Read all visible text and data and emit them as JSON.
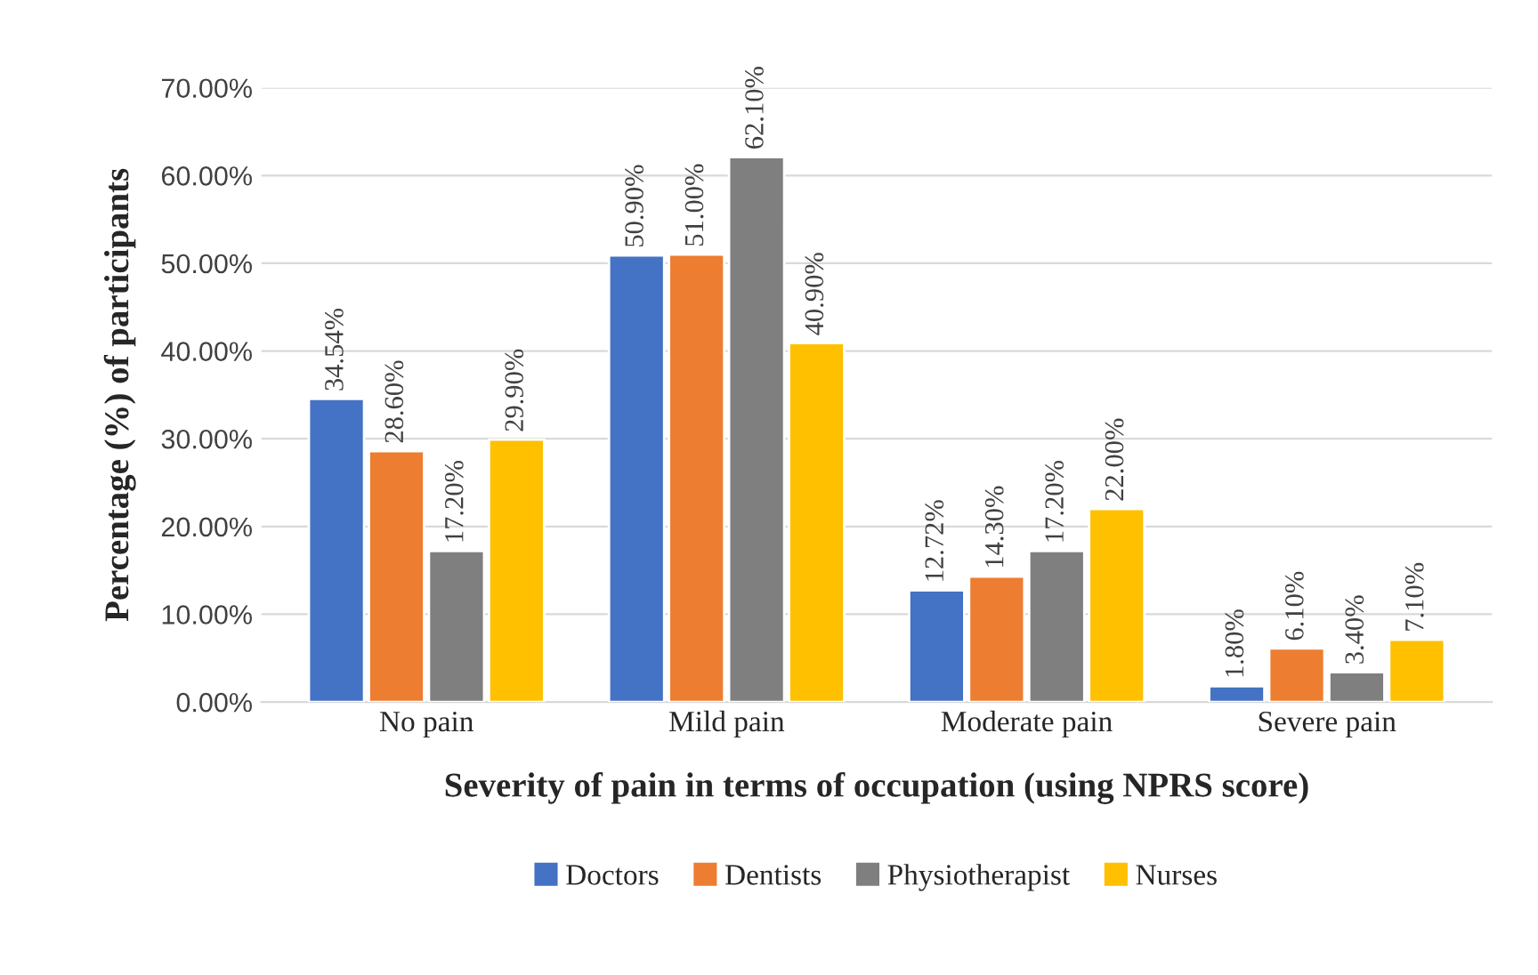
{
  "chart_data": {
    "type": "bar",
    "xlabel": "Severity of pain in terms of occupation (using NPRS score)",
    "ylabel": "Percentage (%) of participants",
    "categories": [
      "No pain",
      "Mild pain",
      "Moderate pain",
      "Severe pain"
    ],
    "series": [
      {
        "name": "Doctors",
        "color": "#4472c4",
        "values": [
          34.54,
          50.9,
          12.72,
          1.8
        ],
        "value_labels": [
          "34.54%",
          "50.90%",
          "12.72%",
          "1.80%"
        ]
      },
      {
        "name": "Dentists",
        "color": "#ed7d31",
        "values": [
          28.6,
          51.0,
          14.3,
          6.1
        ],
        "value_labels": [
          "28.60%",
          "51.00%",
          "14.30%",
          "6.10%"
        ]
      },
      {
        "name": "Physiotherapist",
        "color": "#7f7f7f",
        "values": [
          17.2,
          62.1,
          17.2,
          3.4
        ],
        "value_labels": [
          "17.20%",
          "62.10%",
          "17.20%",
          "3.40%"
        ]
      },
      {
        "name": "Nurses",
        "color": "#ffc000",
        "values": [
          29.9,
          40.9,
          22.0,
          7.1
        ],
        "value_labels": [
          "29.90%",
          "40.90%",
          "22.00%",
          "7.10%"
        ]
      }
    ],
    "ylim": [
      0,
      70
    ],
    "yticks": [
      {
        "value": 0,
        "label": "0.00%"
      },
      {
        "value": 10,
        "label": "10.00%"
      },
      {
        "value": 20,
        "label": "20.00%"
      },
      {
        "value": 30,
        "label": "30.00%"
      },
      {
        "value": 40,
        "label": "40.00%"
      },
      {
        "value": 50,
        "label": "50.00%"
      },
      {
        "value": 60,
        "label": "60.00%"
      },
      {
        "value": 70,
        "label": "70.00%"
      }
    ],
    "grid": "y",
    "legend": "bottom"
  }
}
